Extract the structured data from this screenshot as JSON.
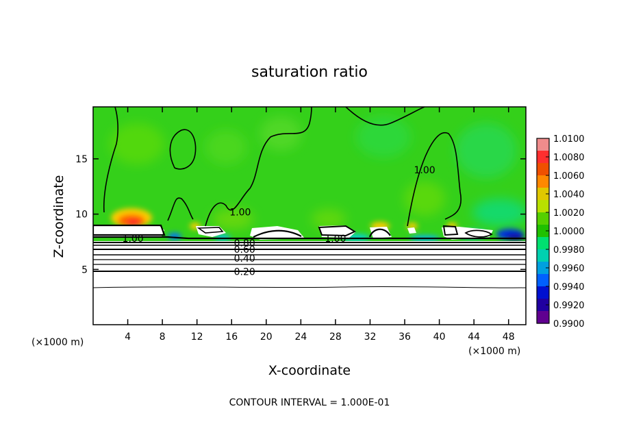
{
  "chart_data": {
    "type": "heatmap",
    "title": "saturation ratio",
    "xlabel": "X-coordinate",
    "ylabel": "Z-coordinate",
    "x_units_label": "(×1000 m)",
    "z_units_label": "(×1000 m)",
    "x_ticks": [
      4,
      8,
      12,
      16,
      20,
      24,
      28,
      32,
      36,
      40,
      44,
      48
    ],
    "z_ticks": [
      5,
      10,
      15
    ],
    "xlim": [
      0,
      50
    ],
    "zlim": [
      0,
      19.7
    ],
    "footer": "CONTOUR INTERVAL = 1.000E-01",
    "colorbar": {
      "ticks": [
        "1.0100",
        "1.0080",
        "1.0060",
        "1.0040",
        "1.0020",
        "1.0000",
        "0.9980",
        "0.9960",
        "0.9940",
        "0.9920",
        "0.9900"
      ],
      "colors": [
        "#f08c8c",
        "#ff2f2f",
        "#f05000",
        "#ff8800",
        "#e0c800",
        "#b8e000",
        "#55d000",
        "#20c000",
        "#00e070",
        "#00d0b0",
        "#00a0e0",
        "#0060ff",
        "#0010d0",
        "#2000a0",
        "#600090"
      ]
    },
    "contour_labels": [
      {
        "text": "1.00",
        "x": 4.6,
        "z": 7.8
      },
      {
        "text": "1.00",
        "x": 17.0,
        "z": 10.2
      },
      {
        "text": "1.00",
        "x": 28.0,
        "z": 7.8
      },
      {
        "text": "1.00",
        "x": 38.3,
        "z": 14.0
      },
      {
        "text": "0.80",
        "x": 17.5,
        "z": 7.4
      },
      {
        "text": "0.60",
        "x": 17.5,
        "z": 6.8
      },
      {
        "text": "0.40",
        "x": 17.5,
        "z": 6.0
      },
      {
        "text": "0.20",
        "x": 17.5,
        "z": 4.8
      }
    ],
    "contour_levels": [
      0.2,
      0.4,
      0.6,
      0.8,
      1.0
    ],
    "grid": false
  }
}
